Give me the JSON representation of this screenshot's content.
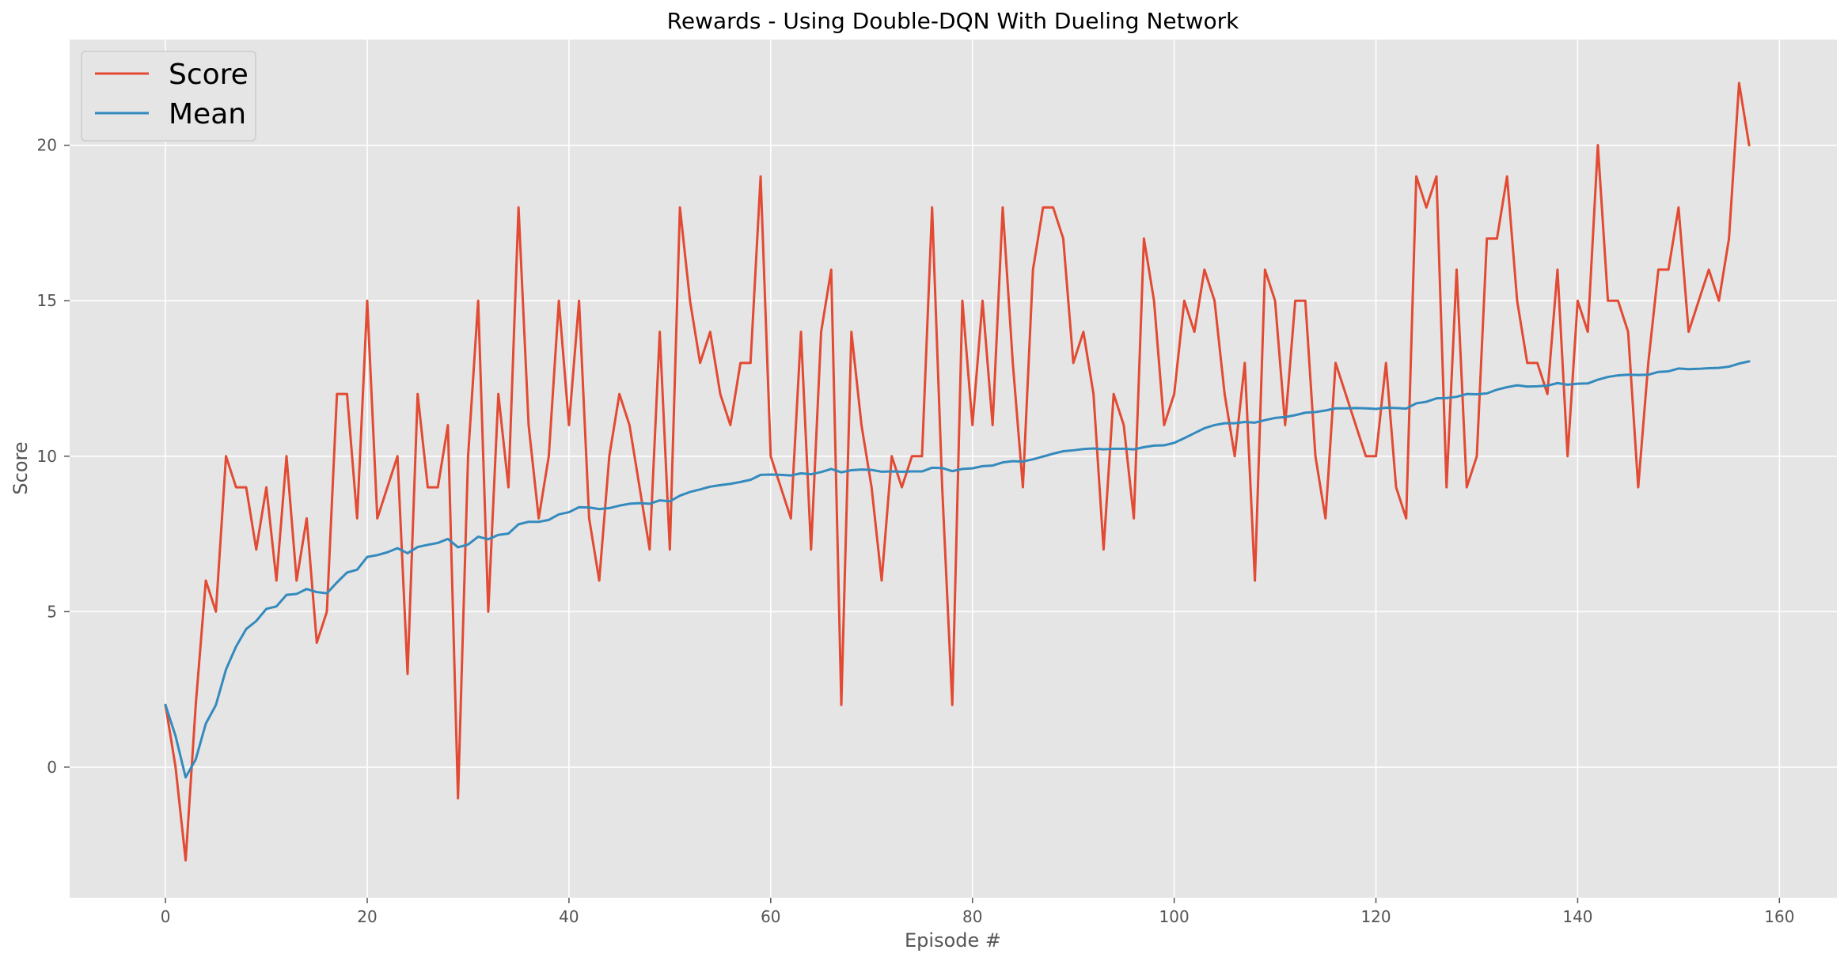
{
  "chart_data": {
    "type": "line",
    "title": "Rewards - Using Double-DQN With Dueling Network",
    "xlabel": "Episode #",
    "ylabel": "Score",
    "xlim": [
      -9.5,
      165.7
    ],
    "ylim": [
      -4.2,
      23.4
    ],
    "xticks": [
      0,
      20,
      40,
      60,
      80,
      100,
      120,
      140,
      160
    ],
    "yticks": [
      0,
      5,
      10,
      15,
      20
    ],
    "grid": true,
    "legend_position": "top-left",
    "background_color": "#E5E5E5",
    "grid_color": "#FFFFFF",
    "series": [
      {
        "name": "Score",
        "color": "#E24A33",
        "values": [
          2,
          0,
          -3,
          2,
          6,
          5,
          10,
          9,
          9,
          7,
          9,
          6,
          10,
          6,
          8,
          4,
          5,
          12,
          12,
          8,
          15,
          8,
          9,
          10,
          3,
          12,
          9,
          9,
          11,
          -1,
          10,
          15,
          5,
          12,
          9,
          18,
          11,
          8,
          10,
          15,
          11,
          15,
          8,
          6,
          10,
          12,
          11,
          9,
          7,
          14,
          7,
          18,
          15,
          13,
          14,
          12,
          11,
          13,
          13,
          19,
          10,
          9,
          8,
          14,
          7,
          14,
          16,
          2,
          14,
          11,
          9,
          6,
          10,
          9,
          10,
          10,
          18,
          9,
          2,
          15,
          11,
          15,
          11,
          18,
          13,
          9,
          16,
          18,
          18,
          17,
          13,
          14,
          12,
          7,
          12,
          11,
          8,
          17,
          15,
          11,
          12,
          15,
          14,
          16,
          15,
          12,
          10,
          13,
          6,
          16,
          15,
          11,
          15,
          15,
          10,
          8,
          13,
          12,
          11,
          10,
          10,
          13,
          9,
          8,
          19,
          18,
          19,
          9,
          16,
          9,
          10,
          17,
          17,
          19,
          15,
          13,
          13,
          12,
          16,
          10,
          15,
          14,
          20,
          15,
          15,
          14,
          9,
          13,
          16,
          16,
          18,
          14,
          15,
          16,
          15,
          17,
          22,
          20
        ]
      },
      {
        "name": "Mean",
        "color": "#348ABD",
        "values": [
          2.0,
          1.0,
          -0.33,
          0.25,
          1.4,
          2.0,
          3.14,
          3.88,
          4.44,
          4.7,
          5.09,
          5.17,
          5.54,
          5.57,
          5.73,
          5.63,
          5.59,
          5.94,
          6.26,
          6.35,
          6.76,
          6.82,
          6.91,
          7.04,
          6.88,
          7.08,
          7.15,
          7.21,
          7.34,
          7.07,
          7.16,
          7.41,
          7.33,
          7.47,
          7.51,
          7.81,
          7.89,
          7.89,
          7.95,
          8.13,
          8.2,
          8.36,
          8.35,
          8.3,
          8.33,
          8.41,
          8.47,
          8.49,
          8.47,
          8.58,
          8.55,
          8.73,
          8.85,
          8.93,
          9.02,
          9.07,
          9.11,
          9.17,
          9.24,
          9.4,
          9.41,
          9.4,
          9.38,
          9.45,
          9.42,
          9.49,
          9.59,
          9.48,
          9.55,
          9.57,
          9.56,
          9.5,
          9.51,
          9.5,
          9.51,
          9.51,
          9.63,
          9.62,
          9.52,
          9.59,
          9.61,
          9.68,
          9.7,
          9.8,
          9.84,
          9.83,
          9.9,
          9.99,
          10.08,
          10.16,
          10.19,
          10.23,
          10.25,
          10.22,
          10.24,
          10.24,
          10.22,
          10.29,
          10.34,
          10.35,
          10.43,
          10.58,
          10.74,
          10.9,
          11.0,
          11.06,
          11.06,
          11.1,
          11.08,
          11.16,
          11.23,
          11.26,
          11.32,
          11.4,
          11.42,
          11.47,
          11.54,
          11.54,
          11.55,
          11.54,
          11.52,
          11.56,
          11.55,
          11.53,
          11.7,
          11.75,
          11.86,
          11.87,
          11.91,
          12.0,
          11.99,
          12.02,
          12.14,
          12.22,
          12.28,
          12.24,
          12.25,
          12.27,
          12.35,
          12.3,
          12.33,
          12.34,
          12.46,
          12.55,
          12.6,
          12.62,
          12.61,
          12.62,
          12.71,
          12.73,
          12.82,
          12.8,
          12.81,
          12.83,
          12.84,
          12.88,
          12.98,
          13.05
        ]
      }
    ]
  }
}
